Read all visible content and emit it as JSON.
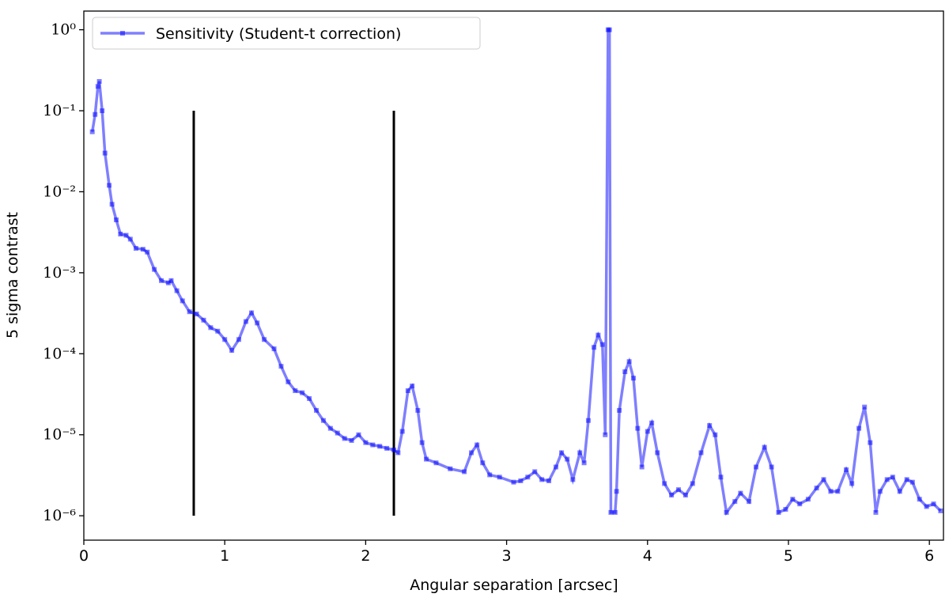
{
  "chart_data": {
    "type": "line",
    "log_y": true,
    "legend_position": "upper left",
    "xlabel": "Angular separation [arcsec]",
    "ylabel": "5 sigma contrast",
    "xlim": [
      0,
      6.1
    ],
    "xticks": [
      0,
      1,
      2,
      3,
      4,
      5,
      6
    ],
    "ylim": [
      5e-07,
      1.7
    ],
    "yticks": [
      {
        "value": 1e-06,
        "label": "10⁻⁶"
      },
      {
        "value": 1e-05,
        "label": "10⁻⁵"
      },
      {
        "value": 0.0001,
        "label": "10⁻⁴"
      },
      {
        "value": 0.001,
        "label": "10⁻³"
      },
      {
        "value": 0.01,
        "label": "10⁻²"
      },
      {
        "value": 0.1,
        "label": "10⁻¹"
      },
      {
        "value": 1,
        "label": "10⁰"
      }
    ],
    "vlines": [
      {
        "x": 0.78,
        "ymin": 1e-06,
        "ymax": 0.1,
        "color": "#000000"
      },
      {
        "x": 2.2,
        "ymin": 1e-06,
        "ymax": 0.1,
        "color": "#000000"
      }
    ],
    "series": [
      {
        "name": "Sensitivity (Student-t correction)",
        "color": "#0000ff",
        "x": [
          0.06,
          0.08,
          0.1,
          0.11,
          0.13,
          0.15,
          0.18,
          0.2,
          0.23,
          0.26,
          0.3,
          0.33,
          0.37,
          0.42,
          0.45,
          0.5,
          0.55,
          0.6,
          0.62,
          0.66,
          0.7,
          0.75,
          0.8,
          0.85,
          0.9,
          0.95,
          1.0,
          1.05,
          1.1,
          1.15,
          1.19,
          1.23,
          1.28,
          1.35,
          1.4,
          1.45,
          1.5,
          1.55,
          1.6,
          1.65,
          1.7,
          1.75,
          1.8,
          1.85,
          1.9,
          1.95,
          2.0,
          2.05,
          2.1,
          2.15,
          2.2,
          2.23,
          2.26,
          2.3,
          2.33,
          2.37,
          2.4,
          2.43,
          2.5,
          2.6,
          2.7,
          2.75,
          2.79,
          2.83,
          2.88,
          2.95,
          3.05,
          3.1,
          3.15,
          3.2,
          3.25,
          3.3,
          3.35,
          3.39,
          3.43,
          3.47,
          3.52,
          3.55,
          3.58,
          3.62,
          3.65,
          3.68,
          3.7,
          3.72,
          3.73,
          3.74,
          3.77,
          3.78,
          3.8,
          3.84,
          3.87,
          3.9,
          3.93,
          3.96,
          4.0,
          4.03,
          4.07,
          4.12,
          4.17,
          4.22,
          4.27,
          4.32,
          4.38,
          4.44,
          4.48,
          4.52,
          4.56,
          4.62,
          4.66,
          4.72,
          4.77,
          4.83,
          4.88,
          4.93,
          4.98,
          5.03,
          5.08,
          5.14,
          5.2,
          5.25,
          5.3,
          5.35,
          5.41,
          5.45,
          5.5,
          5.54,
          5.58,
          5.62,
          5.65,
          5.7,
          5.74,
          5.79,
          5.84,
          5.88,
          5.93,
          5.98,
          6.03,
          6.08
        ],
        "values": [
          0.055,
          0.09,
          0.2,
          0.23,
          0.1,
          0.03,
          0.012,
          0.007,
          0.0045,
          0.003,
          0.0029,
          0.0026,
          0.002,
          0.00195,
          0.0018,
          0.0011,
          0.0008,
          0.00075,
          0.0008,
          0.0006,
          0.00045,
          0.00033,
          0.00031,
          0.00026,
          0.00021,
          0.00019,
          0.00015,
          0.00011,
          0.00015,
          0.00025,
          0.00032,
          0.00024,
          0.00015,
          0.000115,
          7e-05,
          4.5e-05,
          3.5e-05,
          3.3e-05,
          2.8e-05,
          2e-05,
          1.5e-05,
          1.2e-05,
          1.05e-05,
          9e-06,
          8.5e-06,
          1e-05,
          8e-06,
          7.5e-06,
          7.2e-06,
          6.8e-06,
          6.5e-06,
          6e-06,
          1.1e-05,
          3.5e-05,
          4e-05,
          2e-05,
          8e-06,
          5e-06,
          4.5e-06,
          3.8e-06,
          3.5e-06,
          6e-06,
          7.5e-06,
          4.5e-06,
          3.2e-06,
          3e-06,
          2.6e-06,
          2.7e-06,
          3e-06,
          3.5e-06,
          2.8e-06,
          2.7e-06,
          4e-06,
          6e-06,
          5e-06,
          2.8e-06,
          6e-06,
          4.5e-06,
          1.5e-05,
          0.00012,
          0.00017,
          0.00013,
          1e-05,
          1,
          1,
          1.1e-06,
          1.1e-06,
          2e-06,
          2e-05,
          6e-05,
          8e-05,
          5e-05,
          1.2e-05,
          4e-06,
          1.1e-05,
          1.4e-05,
          6e-06,
          2.5e-06,
          1.8e-06,
          2.1e-06,
          1.8e-06,
          2.5e-06,
          6e-06,
          1.3e-05,
          1e-05,
          3e-06,
          1.1e-06,
          1.5e-06,
          1.9e-06,
          1.5e-06,
          4e-06,
          7e-06,
          4e-06,
          1.1e-06,
          1.2e-06,
          1.6e-06,
          1.4e-06,
          1.6e-06,
          2.2e-06,
          2.8e-06,
          2e-06,
          2e-06,
          3.7e-06,
          2.5e-06,
          1.2e-05,
          2.2e-05,
          8e-06,
          1.1e-06,
          2e-06,
          2.8e-06,
          3e-06,
          2e-06,
          2.8e-06,
          2.6e-06,
          1.6e-06,
          1.3e-06,
          1.4e-06,
          1.15e-06
        ]
      }
    ]
  }
}
